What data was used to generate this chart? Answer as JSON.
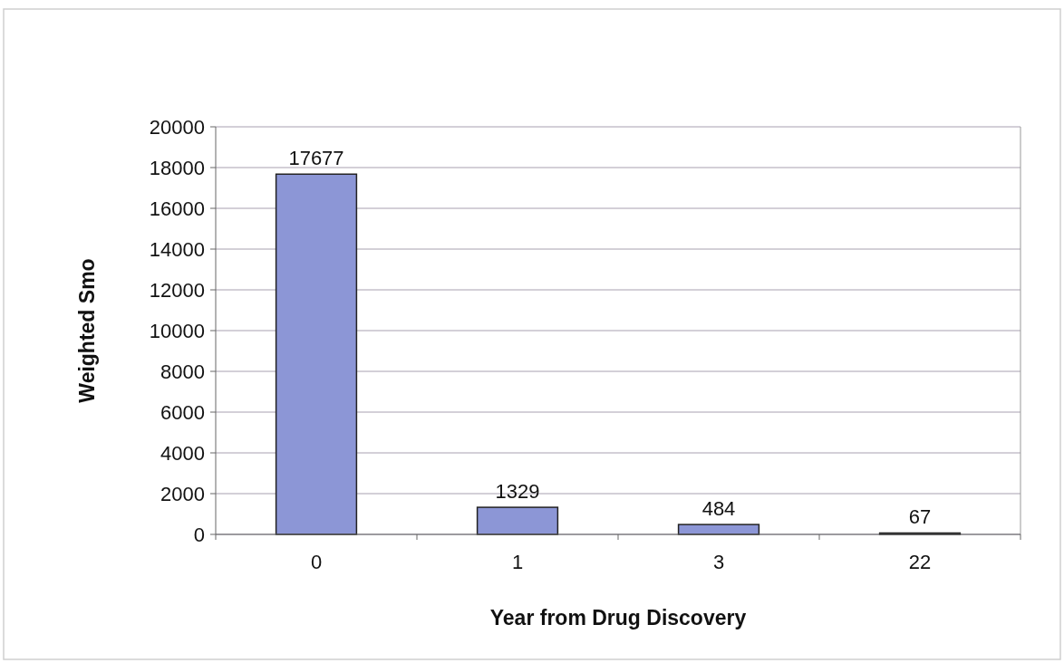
{
  "chart_data": {
    "type": "bar",
    "xlabel": "Year from Drug Discovery",
    "ylabel": "Weighted Smo",
    "categories": [
      "0",
      "1",
      "3",
      "22"
    ],
    "values": [
      17677,
      1329,
      484,
      67
    ],
    "color": "#8c96d6",
    "ylim": [
      0,
      20000
    ],
    "yticks": [
      0,
      2000,
      4000,
      6000,
      8000,
      10000,
      12000,
      14000,
      16000,
      18000,
      20000
    ],
    "grid": "y",
    "data_labels": true
  }
}
